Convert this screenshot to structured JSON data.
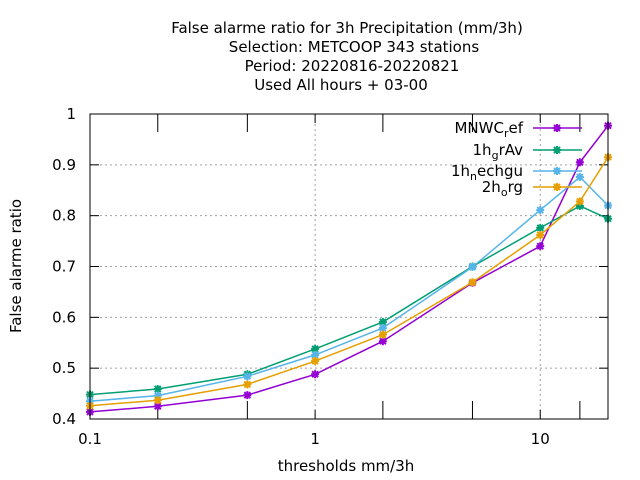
{
  "title_lines": [
    "False alarme ratio  for 3h Precipitation (mm/3h)",
    "Selection: METCOOP    343 stations",
    "Period: 20220816-20220821",
    "Used  All hours  + 03-00"
  ],
  "chart_data": {
    "type": "line",
    "xscale": "log",
    "xlabel": "thresholds mm/3h",
    "ylabel": "False alarme ratio",
    "xlim": [
      0.1,
      20
    ],
    "ylim": [
      0.4,
      1.0
    ],
    "grid": true,
    "legend_position": "top-right",
    "xticks": [
      {
        "value": 0.1,
        "label": "0.1"
      },
      {
        "value": 1,
        "label": "1"
      },
      {
        "value": 10,
        "label": "10"
      }
    ],
    "xminor_ticks": [
      0.2,
      0.5,
      2,
      5,
      15,
      20
    ],
    "yticks": [
      {
        "value": 0.4,
        "label": "0.4"
      },
      {
        "value": 0.5,
        "label": "0.5"
      },
      {
        "value": 0.6,
        "label": "0.6"
      },
      {
        "value": 0.7,
        "label": "0.7"
      },
      {
        "value": 0.8,
        "label": "0.8"
      },
      {
        "value": 0.9,
        "label": "0.9"
      },
      {
        "value": 1.0,
        "label": "1"
      }
    ],
    "x": [
      0.1,
      0.2,
      0.5,
      1,
      2,
      5,
      10,
      15,
      20
    ],
    "series": [
      {
        "name_main": "MNWC",
        "name_sub": "r",
        "name_tail": "ef",
        "color": "#9400d3",
        "values": [
          0.414,
          0.425,
          0.447,
          0.488,
          0.553,
          0.668,
          0.74,
          0.905,
          0.977
        ]
      },
      {
        "name_main": "1h",
        "name_sub": "g",
        "name_tail": "rAv",
        "color": "#009e73",
        "values": [
          0.448,
          0.459,
          0.488,
          0.538,
          0.591,
          0.7,
          0.776,
          0.819,
          0.794
        ]
      },
      {
        "name_main": "1h",
        "name_sub": "n",
        "name_tail": "echgu",
        "color": "#56b4e9",
        "values": [
          0.435,
          0.446,
          0.484,
          0.526,
          0.579,
          0.699,
          0.811,
          0.876,
          0.82
        ]
      },
      {
        "name_main": "2h",
        "name_sub": "o",
        "name_tail": "rg",
        "color": "#e69f00",
        "values": [
          0.426,
          0.437,
          0.468,
          0.514,
          0.566,
          0.669,
          0.762,
          0.828,
          0.915
        ]
      }
    ]
  }
}
